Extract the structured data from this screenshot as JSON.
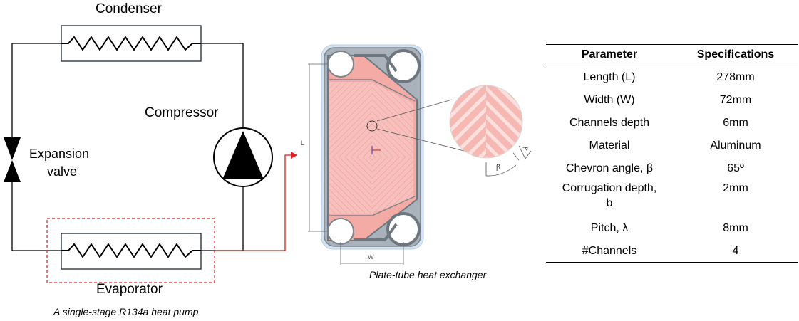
{
  "cycle": {
    "condenser_label": "Condenser",
    "compressor_label": "Compressor",
    "expansion_valve_line1": "Expansion",
    "expansion_valve_line2": "valve",
    "evaporator_label": "Evaporator",
    "caption": "A single-stage R134a heat pump"
  },
  "exchanger": {
    "length_mark": "L",
    "width_mark": "W",
    "beta_mark": "β",
    "lambda_mark": "λ",
    "caption": "Plate-tube heat exchanger"
  },
  "table": {
    "headers": [
      "Parameter",
      "Specifications"
    ],
    "rows": [
      {
        "param": "Length (L)",
        "spec": "278mm"
      },
      {
        "param": "Width (W)",
        "spec": "72mm"
      },
      {
        "param": "Channels depth",
        "spec": "6mm"
      },
      {
        "param": "Material",
        "spec": "Aluminum"
      },
      {
        "param": "Chevron angle, β",
        "spec": "65º"
      },
      {
        "param": "Corrugation depth,",
        "param_line2": "b",
        "spec": "2mm"
      },
      {
        "param": "Pitch, λ",
        "spec": "8mm"
      },
      {
        "param": "#Channels",
        "spec": "4"
      }
    ]
  },
  "colors": {
    "line": "#000000",
    "highlight": "#e02020",
    "plate_fill": "#f9c4c0",
    "plate_frame": "#8e949c",
    "plate_outer": "#d3e3f3"
  }
}
